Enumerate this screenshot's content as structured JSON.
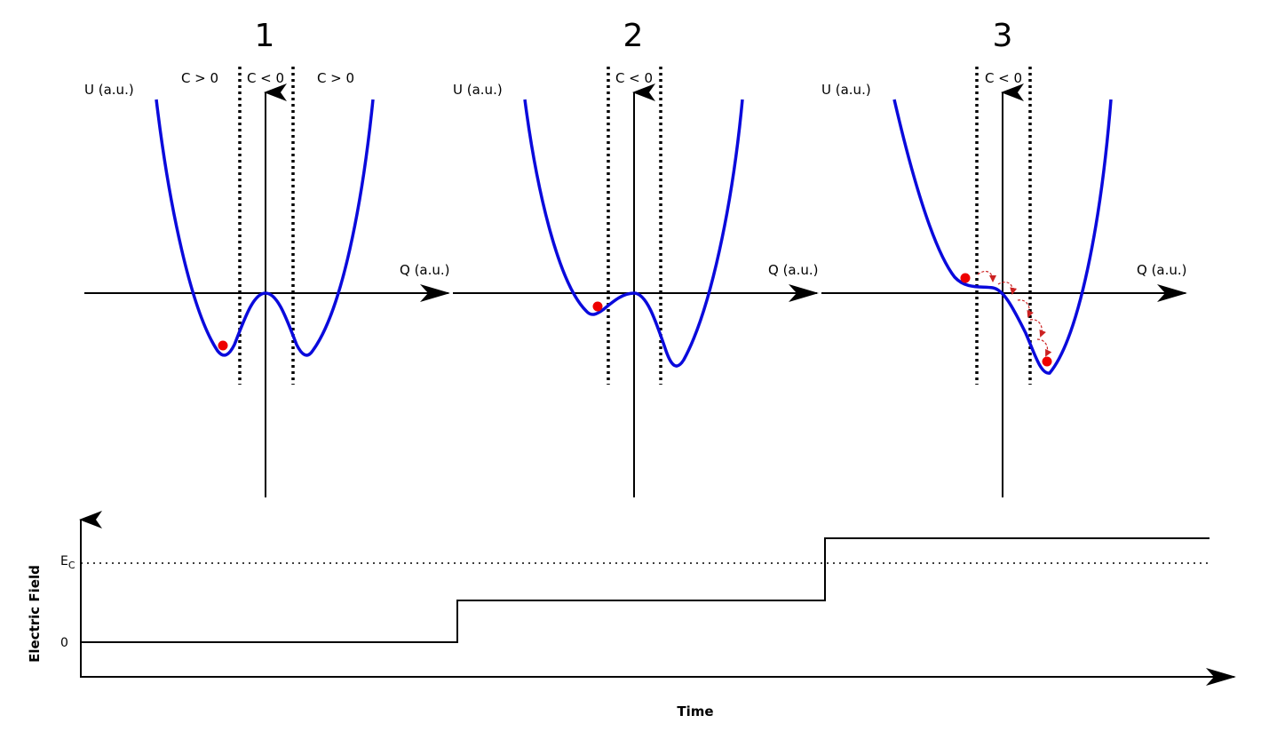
{
  "panels": [
    {
      "number": "1",
      "u_label": "U (a.u.)",
      "q_label": "Q (a.u.)",
      "regions": [
        "C > 0",
        "C < 0",
        "C > 0"
      ]
    },
    {
      "number": "2",
      "u_label": "U (a.u.)",
      "q_label": "Q (a.u.)",
      "regions": [
        "",
        "C < 0",
        ""
      ]
    },
    {
      "number": "3",
      "u_label": "U (a.u.)",
      "q_label": "Q (a.u.)",
      "regions": [
        "",
        "C < 0",
        ""
      ]
    }
  ],
  "field_plot": {
    "y_label": "Electric Field",
    "x_label": "Time",
    "ec_label": "E",
    "ec_subscript": "C",
    "zero_label": "0",
    "steps": [
      "0",
      "below E_C",
      "above E_C"
    ]
  },
  "colors": {
    "curve": "#0a0adc",
    "particle": "#ee0000",
    "hop_arrows": "#cc2222",
    "axes": "#000000"
  }
}
